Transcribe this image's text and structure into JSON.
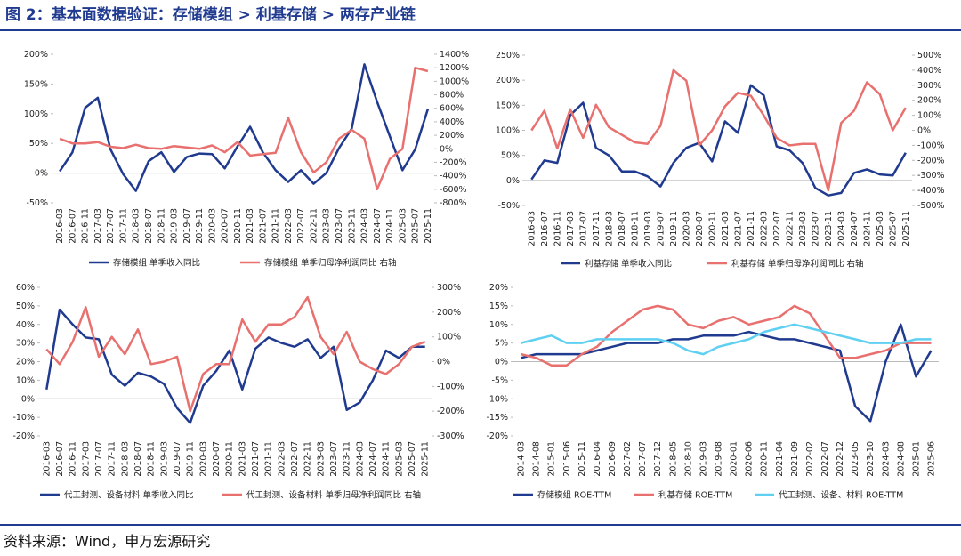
{
  "title": "图 2：基本面数据验证：存储模组 > 利基存储 > 两存产业链",
  "source": "资料来源：Wind，申万宏源研究",
  "chart_data": [
    {
      "type": "line",
      "categories": [
        "2016-03",
        "2016-07",
        "2016-11",
        "2017-03",
        "2017-07",
        "2017-11",
        "2018-03",
        "2018-07",
        "2018-11",
        "2019-03",
        "2019-07",
        "2019-11",
        "2020-03",
        "2020-07",
        "2020-11",
        "2021-03",
        "2021-07",
        "2021-11",
        "2022-03",
        "2022-07",
        "2022-11",
        "2023-03",
        "2023-07",
        "2023-11",
        "2024-03",
        "2024-07",
        "2024-11",
        "2025-03",
        "2025-07",
        "2025-11"
      ],
      "series": [
        {
          "name": "存储模组 单季收入同比",
          "color": "#1f3a8f",
          "axis": "y",
          "values": [
            3,
            35,
            110,
            127,
            40,
            -2,
            -30,
            20,
            35,
            2,
            27,
            33,
            32,
            8,
            45,
            78,
            35,
            5,
            -15,
            5,
            -18,
            0,
            42,
            75,
            183,
            120,
            62,
            5,
            40,
            108
          ]
        },
        {
          "name": "存储模组 单季归母净利润同比 右轴",
          "color": "#e8706e",
          "axis": "y2",
          "values": [
            150,
            80,
            80,
            100,
            30,
            10,
            60,
            10,
            0,
            40,
            20,
            0,
            50,
            -50,
            100,
            -100,
            -80,
            -60,
            460,
            -50,
            -350,
            -200,
            150,
            280,
            150,
            -600,
            -150,
            0,
            1200,
            1150
          ]
        }
      ],
      "ylim": [
        -50,
        200
      ],
      "yticks": [
        {
          "value": -50,
          "label": "-50%"
        },
        {
          "value": 0,
          "label": "0%"
        },
        {
          "value": 50,
          "label": "50%"
        },
        {
          "value": 100,
          "label": "100%"
        },
        {
          "value": 150,
          "label": "150%"
        },
        {
          "value": 200,
          "label": "200%"
        }
      ],
      "y2lim": [
        -800,
        1400
      ],
      "y2ticks": [
        {
          "value": -800,
          "label": "-800%"
        },
        {
          "value": -600,
          "label": "-600%"
        },
        {
          "value": -400,
          "label": "-400%"
        },
        {
          "value": -200,
          "label": "-200%"
        },
        {
          "value": 0,
          "label": "0%"
        },
        {
          "value": 200,
          "label": "200%"
        },
        {
          "value": 400,
          "label": "400%"
        },
        {
          "value": 600,
          "label": "600%"
        },
        {
          "value": 800,
          "label": "800%"
        },
        {
          "value": 1000,
          "label": "1000%"
        },
        {
          "value": 1200,
          "label": "1200%"
        },
        {
          "value": 1400,
          "label": "1400%"
        }
      ]
    },
    {
      "type": "line",
      "categories": [
        "2016-03",
        "2016-07",
        "2016-11",
        "2017-03",
        "2017-07",
        "2017-11",
        "2018-03",
        "2018-07",
        "2018-11",
        "2019-03",
        "2019-07",
        "2019-11",
        "2020-03",
        "2020-07",
        "2020-11",
        "2021-03",
        "2021-07",
        "2021-11",
        "2022-03",
        "2022-07",
        "2022-11",
        "2023-03",
        "2023-07",
        "2023-11",
        "2024-03",
        "2024-07",
        "2024-11",
        "2025-03",
        "2025-07",
        "2025-11"
      ],
      "series": [
        {
          "name": "利基存储 单季收入同比",
          "color": "#1f3a8f",
          "axis": "y",
          "values": [
            2,
            40,
            35,
            130,
            155,
            65,
            50,
            18,
            18,
            8,
            -12,
            35,
            65,
            75,
            38,
            118,
            95,
            190,
            170,
            68,
            60,
            35,
            -15,
            -30,
            -25,
            15,
            22,
            12,
            10,
            55
          ]
        },
        {
          "name": "利基存储 单季归母净利润同比 右轴",
          "color": "#e8706e",
          "axis": "y2",
          "values": [
            0,
            130,
            -120,
            140,
            -50,
            170,
            20,
            -30,
            -80,
            -90,
            30,
            400,
            330,
            -100,
            0,
            160,
            250,
            230,
            100,
            -50,
            -100,
            -90,
            -90,
            -400,
            50,
            130,
            320,
            240,
            0,
            150
          ]
        }
      ],
      "ylim": [
        -50,
        250
      ],
      "yticks": [
        {
          "value": -50,
          "label": "-50%"
        },
        {
          "value": 0,
          "label": "0%"
        },
        {
          "value": 50,
          "label": "50%"
        },
        {
          "value": 100,
          "label": "100%"
        },
        {
          "value": 150,
          "label": "150%"
        },
        {
          "value": 200,
          "label": "200%"
        },
        {
          "value": 250,
          "label": "250%"
        }
      ],
      "y2lim": [
        -500,
        500
      ],
      "y2ticks": [
        {
          "value": -500,
          "label": "-500%"
        },
        {
          "value": -400,
          "label": "-400%"
        },
        {
          "value": -300,
          "label": "-300%"
        },
        {
          "value": -200,
          "label": "-200%"
        },
        {
          "value": -100,
          "label": "-100%"
        },
        {
          "value": 0,
          "label": "0%"
        },
        {
          "value": 100,
          "label": "100%"
        },
        {
          "value": 200,
          "label": "200%"
        },
        {
          "value": 300,
          "label": "300%"
        },
        {
          "value": 400,
          "label": "400%"
        },
        {
          "value": 500,
          "label": "500%"
        }
      ]
    },
    {
      "type": "line",
      "categories": [
        "2016-03",
        "2016-07",
        "2016-11",
        "2017-03",
        "2017-07",
        "2017-11",
        "2018-03",
        "2018-07",
        "2018-11",
        "2019-03",
        "2019-07",
        "2019-11",
        "2020-03",
        "2020-07",
        "2020-11",
        "2021-03",
        "2021-07",
        "2021-11",
        "2022-03",
        "2022-07",
        "2022-11",
        "2023-03",
        "2023-07",
        "2023-11",
        "2024-03",
        "2024-07",
        "2024-11",
        "2025-03",
        "2025-07",
        "2025-11"
      ],
      "series": [
        {
          "name": "代工封测、设备材料 单季收入同比",
          "color": "#1f3a8f",
          "axis": "y",
          "values": [
            5,
            48,
            40,
            33,
            32,
            13,
            7,
            14,
            12,
            8,
            -5,
            -13,
            7,
            15,
            26,
            5,
            27,
            33,
            30,
            28,
            32,
            22,
            28,
            -6,
            -2,
            10,
            26,
            22,
            28,
            28
          ]
        },
        {
          "name": "代工封测、设备材料 单季归母净利润同比 右轴",
          "color": "#e8706e",
          "axis": "y2",
          "values": [
            50,
            -10,
            80,
            220,
            20,
            100,
            30,
            130,
            -10,
            0,
            20,
            -200,
            -50,
            -10,
            -10,
            170,
            80,
            150,
            150,
            180,
            260,
            100,
            30,
            120,
            0,
            -30,
            -50,
            -10,
            60,
            80
          ]
        }
      ],
      "ylim": [
        -20,
        60
      ],
      "yticks": [
        {
          "value": -20,
          "label": "-20%"
        },
        {
          "value": -10,
          "label": "-10%"
        },
        {
          "value": 0,
          "label": "0%"
        },
        {
          "value": 10,
          "label": "10%"
        },
        {
          "value": 20,
          "label": "20%"
        },
        {
          "value": 30,
          "label": "30%"
        },
        {
          "value": 40,
          "label": "40%"
        },
        {
          "value": 50,
          "label": "50%"
        },
        {
          "value": 60,
          "label": "60%"
        }
      ],
      "y2lim": [
        -300,
        300
      ],
      "y2ticks": [
        {
          "value": -300,
          "label": "-300%"
        },
        {
          "value": -200,
          "label": "-200%"
        },
        {
          "value": -100,
          "label": "-100%"
        },
        {
          "value": 0,
          "label": "0%"
        },
        {
          "value": 100,
          "label": "100%"
        },
        {
          "value": 200,
          "label": "200%"
        },
        {
          "value": 300,
          "label": "300%"
        }
      ]
    },
    {
      "type": "line",
      "categories": [
        "2014-03",
        "2014-08",
        "2015-01",
        "2015-06",
        "2015-11",
        "2016-04",
        "2016-09",
        "2017-02",
        "2017-07",
        "2017-12",
        "2018-05",
        "2018-10",
        "2019-03",
        "2019-08",
        "2020-01",
        "2020-06",
        "2020-11",
        "2021-04",
        "2021-09",
        "2022-02",
        "2022-07",
        "2022-12",
        "2023-05",
        "2023-10",
        "2024-03",
        "2024-08",
        "2025-01",
        "2025-06"
      ],
      "series": [
        {
          "name": "存储模组 ROE-TTM",
          "color": "#1f3a8f",
          "axis": "y",
          "values": [
            1,
            2,
            2,
            2,
            2,
            3,
            4,
            5,
            5,
            5,
            6,
            6,
            7,
            7,
            7,
            8,
            7,
            6,
            6,
            5,
            4,
            3,
            -12,
            -16,
            0,
            10,
            -4,
            3
          ]
        },
        {
          "name": "利基存储 ROE-TTM",
          "color": "#e8706e",
          "axis": "y",
          "values": [
            2,
            1,
            -1,
            -1,
            2,
            4,
            8,
            11,
            14,
            15,
            14,
            10,
            9,
            11,
            12,
            10,
            11,
            12,
            15,
            13,
            7,
            1,
            1,
            2,
            3,
            5,
            5,
            5
          ]
        },
        {
          "name": "代工封测、设备、材料 ROE-TTM",
          "color": "#5fd0f2",
          "axis": "y",
          "values": [
            5,
            6,
            7,
            5,
            5,
            6,
            6,
            6,
            6,
            6,
            5,
            3,
            2,
            4,
            5,
            6,
            8,
            9,
            10,
            9,
            8,
            7,
            6,
            5,
            5,
            5,
            6,
            6
          ]
        }
      ],
      "ylim": [
        -20,
        20
      ],
      "yticks": [
        {
          "value": -20,
          "label": "-20%"
        },
        {
          "value": -15,
          "label": "-15%"
        },
        {
          "value": -10,
          "label": "-10%"
        },
        {
          "value": -5,
          "label": "-5%"
        },
        {
          "value": 0,
          "label": "0%"
        },
        {
          "value": 5,
          "label": "5%"
        },
        {
          "value": 10,
          "label": "10%"
        },
        {
          "value": 15,
          "label": "15%"
        },
        {
          "value": 20,
          "label": "20%"
        }
      ]
    }
  ]
}
